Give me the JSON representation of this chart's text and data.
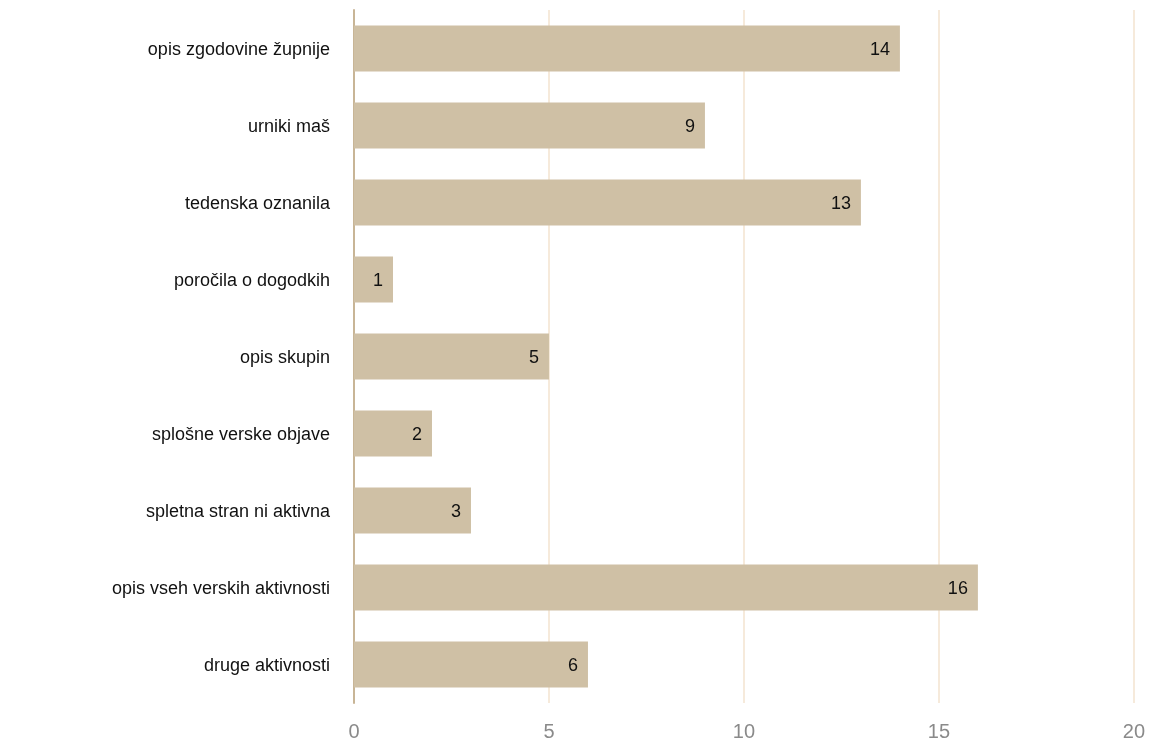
{
  "chart_data": {
    "type": "bar",
    "orientation": "horizontal",
    "categories": [
      "opis zgodovine župnije",
      "urniki maš",
      "tedenska oznanila",
      "poročila o dogodkih",
      "opis skupin",
      "splošne verske objave",
      "spletna stran ni aktivna",
      "opis vseh verskih aktivnosti",
      "druge aktivnosti"
    ],
    "values": [
      14,
      9,
      13,
      1,
      5,
      2,
      3,
      16,
      6
    ],
    "color": "#cfc0a5",
    "xlim": [
      0,
      20
    ],
    "xticks": [
      0,
      5,
      10,
      15,
      20
    ],
    "grid": "x",
    "data_labels": true
  }
}
